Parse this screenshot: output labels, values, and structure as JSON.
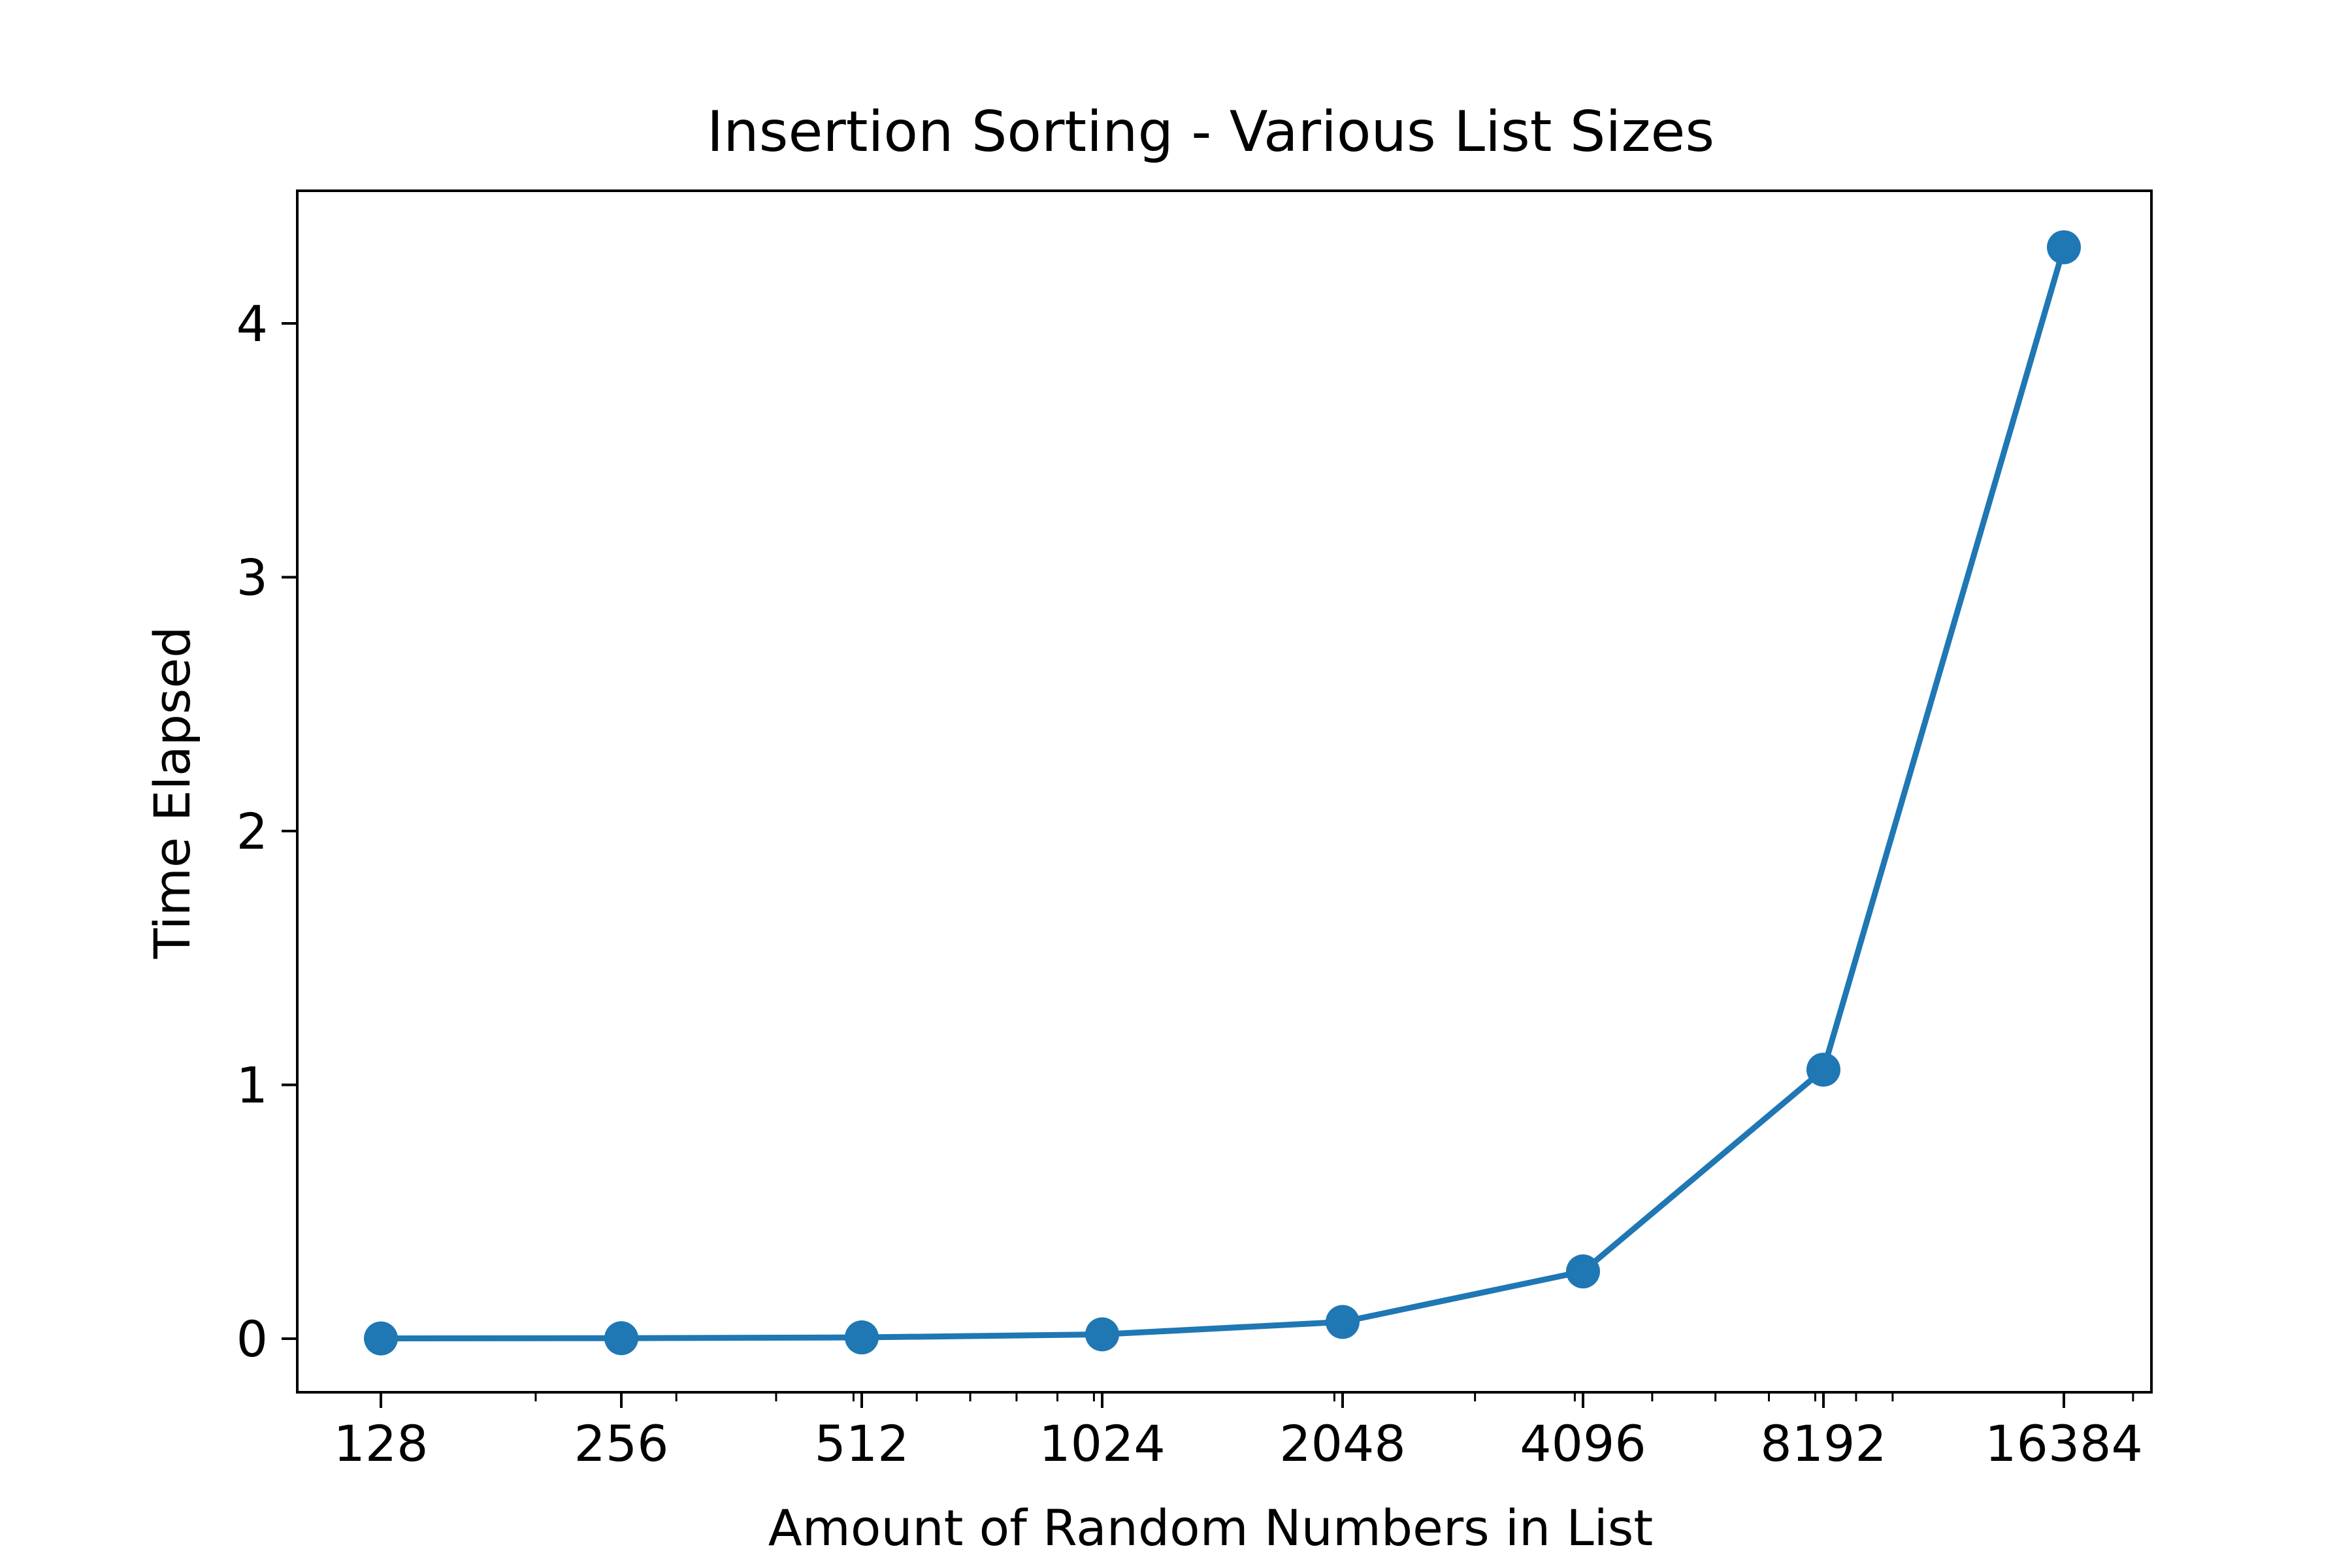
{
  "chart_data": {
    "type": "line",
    "title": "Insertion Sorting - Various List Sizes",
    "xlabel": "Amount of Random Numbers in List",
    "ylabel": "Time Elapsed",
    "x_scale": "log2",
    "x_ticks": [
      "128",
      "256",
      "512",
      "1024",
      "2048",
      "4096",
      "8192",
      "16384"
    ],
    "y_ticks": [
      "0",
      "1",
      "2",
      "3",
      "4"
    ],
    "ylim": [
      -0.2,
      4.5
    ],
    "grid": false,
    "legend": "none",
    "series": [
      {
        "x": [
          128,
          256,
          512,
          1024,
          2048,
          4096,
          8192,
          16384
        ],
        "y": [
          0.001,
          0.002,
          0.005,
          0.017,
          0.066,
          0.265,
          1.06,
          4.3
        ],
        "color": "#1f77b4",
        "marker": "circle"
      }
    ]
  }
}
